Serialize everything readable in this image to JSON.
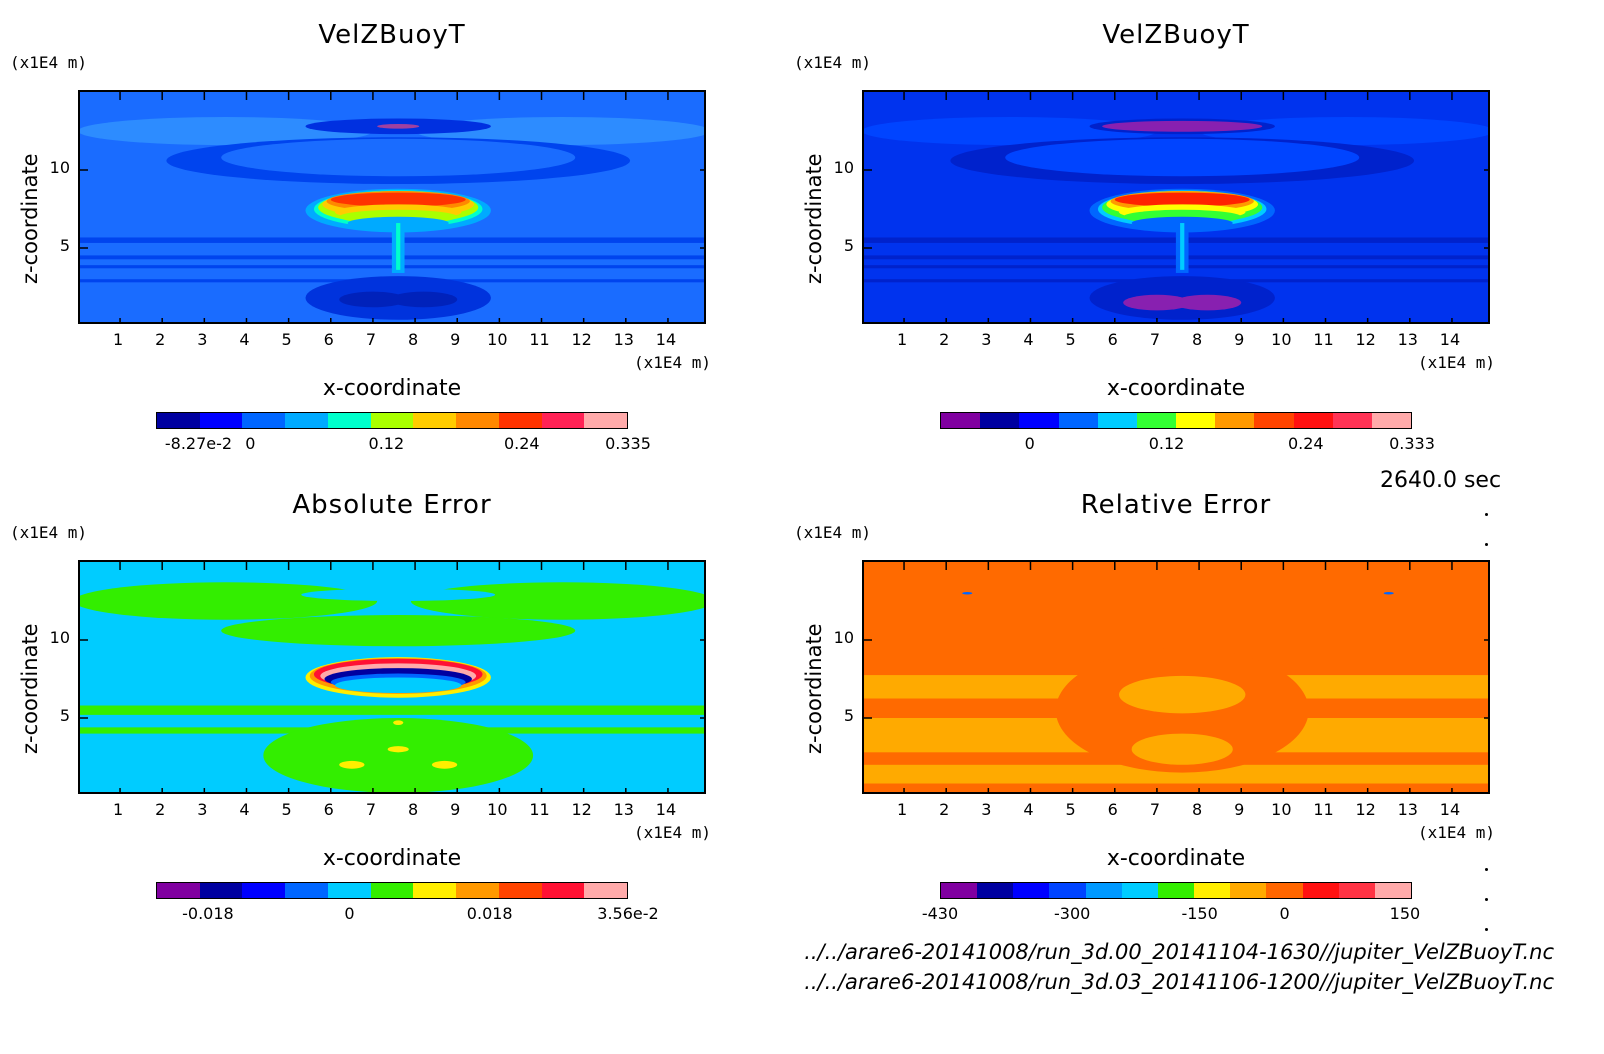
{
  "time_label": "2640.0 sec",
  "file_paths": [
    "../../arare6-20141008/run_3d.00_20141104-1630//jupiter_VelZBuoyT.nc",
    "../../arare6-20141008/run_3d.03_20141106-1200//jupiter_VelZBuoyT.nc"
  ],
  "chart_data": [
    {
      "type": "heatmap",
      "title": "VelZBuoyT",
      "xlabel": "x-coordinate",
      "ylabel": "z-coordinate",
      "x_unit": "(x1E4 m)",
      "y_unit": "(x1E4 m)",
      "xticks": [
        1,
        2,
        3,
        4,
        5,
        6,
        7,
        8,
        9,
        10,
        11,
        12,
        13,
        14
      ],
      "yticks": [
        5,
        10
      ],
      "xlim": [
        0.05,
        14.95
      ],
      "ylim": [
        0,
        15
      ],
      "colorbar": {
        "colors": [
          "#0000a0",
          "#0000ff",
          "#0066ff",
          "#00aaff",
          "#00ffcc",
          "#aaff00",
          "#ffcc00",
          "#ff8800",
          "#ff3300",
          "#ff2255",
          "#ffaaaa"
        ],
        "labels": [
          "-8.27e-2",
          "0",
          "0.12",
          "0.24",
          "0.335"
        ]
      },
      "background": "#1a6cff",
      "layers": [
        {
          "shape": "ellipse",
          "x": 3.5,
          "z": 12.5,
          "rx": 3.5,
          "rz": 0.9,
          "fill": "#2d8cff"
        },
        {
          "shape": "ellipse",
          "x": 11.5,
          "z": 12.5,
          "rx": 3.5,
          "rz": 0.9,
          "fill": "#2d8cff"
        },
        {
          "shape": "ellipse",
          "x": 7.6,
          "z": 12.8,
          "rx": 2.2,
          "rz": 0.5,
          "fill": "#0030e0"
        },
        {
          "shape": "ellipse",
          "x": 7.6,
          "z": 12.8,
          "rx": 0.5,
          "rz": 0.15,
          "fill": "#a040a0"
        },
        {
          "shape": "ellipse",
          "x": 7.6,
          "z": 10.6,
          "rx": 5.5,
          "rz": 1.5,
          "fill": "#0044ee"
        },
        {
          "shape": "ellipse",
          "x": 7.6,
          "z": 10.8,
          "rx": 4.2,
          "rz": 1.2,
          "fill": "#1a6cff"
        },
        {
          "shape": "band",
          "z": 5.5,
          "h": 0.35,
          "fill": "#0044ee"
        },
        {
          "shape": "band",
          "z": 4.4,
          "h": 0.25,
          "fill": "#0044ee"
        },
        {
          "shape": "band",
          "z": 3.8,
          "h": 0.2,
          "fill": "#0044ee"
        },
        {
          "shape": "band",
          "z": 2.9,
          "h": 0.2,
          "fill": "#0044ee"
        },
        {
          "shape": "ellipse",
          "x": 7.6,
          "z": 1.8,
          "rx": 2.2,
          "rz": 1.4,
          "fill": "#0033dd"
        },
        {
          "shape": "ellipse",
          "x": 7.0,
          "z": 1.7,
          "rx": 0.8,
          "rz": 0.5,
          "fill": "#0022bb"
        },
        {
          "shape": "ellipse",
          "x": 8.2,
          "z": 1.7,
          "rx": 0.8,
          "rz": 0.5,
          "fill": "#0022bb"
        },
        {
          "shape": "ellipse",
          "x": 7.6,
          "z": 7.4,
          "rx": 2.2,
          "rz": 1.4,
          "fill": "#00aaff"
        },
        {
          "shape": "ellipse",
          "x": 7.6,
          "z": 7.5,
          "rx": 2.0,
          "rz": 1.2,
          "fill": "#00ffcc"
        },
        {
          "shape": "ellipse",
          "x": 7.6,
          "z": 7.6,
          "rx": 1.9,
          "rz": 1.05,
          "fill": "#aaff00"
        },
        {
          "shape": "ellipse",
          "x": 7.6,
          "z": 7.8,
          "rx": 1.8,
          "rz": 0.85,
          "fill": "#ffcc00"
        },
        {
          "shape": "ellipse",
          "x": 7.6,
          "z": 8.0,
          "rx": 1.7,
          "rz": 0.65,
          "fill": "#ff8800"
        },
        {
          "shape": "ellipse",
          "x": 7.6,
          "z": 8.1,
          "rx": 1.6,
          "rz": 0.45,
          "fill": "#ff3300"
        },
        {
          "shape": "ellipse",
          "x": 7.6,
          "z": 7.3,
          "rx": 1.5,
          "rz": 0.5,
          "fill": "#ffcc00"
        },
        {
          "shape": "ellipse",
          "x": 7.6,
          "z": 7.0,
          "rx": 1.4,
          "rz": 0.45,
          "fill": "#aaff00"
        },
        {
          "shape": "ellipse",
          "x": 7.6,
          "z": 6.6,
          "rx": 1.2,
          "rz": 0.4,
          "fill": "#00aaff"
        },
        {
          "shape": "rect",
          "x": 7.45,
          "z": 3.4,
          "w": 0.3,
          "h": 3.4,
          "fill": "#00aaff"
        },
        {
          "shape": "rect",
          "x": 7.55,
          "z": 3.6,
          "w": 0.1,
          "h": 3.0,
          "fill": "#00ffcc"
        }
      ]
    },
    {
      "type": "heatmap",
      "title": "VelZBuoyT",
      "xlabel": "x-coordinate",
      "ylabel": "z-coordinate",
      "x_unit": "(x1E4 m)",
      "y_unit": "(x1E4 m)",
      "xticks": [
        1,
        2,
        3,
        4,
        5,
        6,
        7,
        8,
        9,
        10,
        11,
        12,
        13,
        14
      ],
      "yticks": [
        5,
        10
      ],
      "xlim": [
        0.05,
        14.95
      ],
      "ylim": [
        0,
        15
      ],
      "colorbar": {
        "colors": [
          "#8000a0",
          "#0000a0",
          "#0000ff",
          "#0066ff",
          "#00ccff",
          "#33ff33",
          "#ffff00",
          "#ff9900",
          "#ff4400",
          "#ff1111",
          "#ff3355",
          "#ffaaaa"
        ],
        "labels": [
          "0",
          "0.12",
          "0.24",
          "0.333"
        ]
      },
      "background": "#0033ee",
      "layers": [
        {
          "shape": "ellipse",
          "x": 3.5,
          "z": 12.5,
          "rx": 3.5,
          "rz": 0.9,
          "fill": "#0044ff"
        },
        {
          "shape": "ellipse",
          "x": 11.5,
          "z": 12.5,
          "rx": 3.5,
          "rz": 0.9,
          "fill": "#0044ff"
        },
        {
          "shape": "ellipse",
          "x": 7.6,
          "z": 12.8,
          "rx": 2.2,
          "rz": 0.5,
          "fill": "#0022cc"
        },
        {
          "shape": "ellipse",
          "x": 7.6,
          "z": 12.8,
          "rx": 1.9,
          "rz": 0.35,
          "fill": "#8820b0"
        },
        {
          "shape": "ellipse",
          "x": 7.6,
          "z": 10.6,
          "rx": 5.5,
          "rz": 1.5,
          "fill": "#0022cc"
        },
        {
          "shape": "ellipse",
          "x": 7.6,
          "z": 10.8,
          "rx": 4.2,
          "rz": 1.2,
          "fill": "#0044ff"
        },
        {
          "shape": "band",
          "z": 5.5,
          "h": 0.35,
          "fill": "#0022cc"
        },
        {
          "shape": "band",
          "z": 4.4,
          "h": 0.25,
          "fill": "#0022cc"
        },
        {
          "shape": "band",
          "z": 3.8,
          "h": 0.2,
          "fill": "#0022cc"
        },
        {
          "shape": "band",
          "z": 2.9,
          "h": 0.2,
          "fill": "#0022cc"
        },
        {
          "shape": "ellipse",
          "x": 7.6,
          "z": 1.8,
          "rx": 2.2,
          "rz": 1.4,
          "fill": "#0022cc"
        },
        {
          "shape": "ellipse",
          "x": 7.0,
          "z": 1.5,
          "rx": 0.8,
          "rz": 0.5,
          "fill": "#8820b0"
        },
        {
          "shape": "ellipse",
          "x": 8.2,
          "z": 1.5,
          "rx": 0.8,
          "rz": 0.5,
          "fill": "#8820b0"
        },
        {
          "shape": "ellipse",
          "x": 7.6,
          "z": 7.4,
          "rx": 2.2,
          "rz": 1.4,
          "fill": "#0066ff"
        },
        {
          "shape": "ellipse",
          "x": 7.6,
          "z": 7.5,
          "rx": 2.0,
          "rz": 1.2,
          "fill": "#00ccff"
        },
        {
          "shape": "ellipse",
          "x": 7.6,
          "z": 7.6,
          "rx": 1.9,
          "rz": 1.05,
          "fill": "#33ff33"
        },
        {
          "shape": "ellipse",
          "x": 7.6,
          "z": 7.8,
          "rx": 1.8,
          "rz": 0.85,
          "fill": "#ffff00"
        },
        {
          "shape": "ellipse",
          "x": 7.6,
          "z": 8.0,
          "rx": 1.7,
          "rz": 0.65,
          "fill": "#ff9900"
        },
        {
          "shape": "ellipse",
          "x": 7.6,
          "z": 8.1,
          "rx": 1.6,
          "rz": 0.45,
          "fill": "#ff2200"
        },
        {
          "shape": "ellipse",
          "x": 7.6,
          "z": 7.3,
          "rx": 1.5,
          "rz": 0.5,
          "fill": "#ffff00"
        },
        {
          "shape": "ellipse",
          "x": 7.6,
          "z": 7.0,
          "rx": 1.4,
          "rz": 0.45,
          "fill": "#33ff33"
        },
        {
          "shape": "ellipse",
          "x": 7.6,
          "z": 6.6,
          "rx": 1.2,
          "rz": 0.4,
          "fill": "#0066ff"
        },
        {
          "shape": "rect",
          "x": 7.45,
          "z": 3.4,
          "w": 0.3,
          "h": 3.4,
          "fill": "#0066ff"
        },
        {
          "shape": "rect",
          "x": 7.55,
          "z": 3.6,
          "w": 0.1,
          "h": 3.0,
          "fill": "#00ccff"
        }
      ]
    },
    {
      "type": "heatmap",
      "title": "Absolute Error",
      "xlabel": "x-coordinate",
      "ylabel": "z-coordinate",
      "x_unit": "(x1E4 m)",
      "y_unit": "(x1E4 m)",
      "xticks": [
        1,
        2,
        3,
        4,
        5,
        6,
        7,
        8,
        9,
        10,
        11,
        12,
        13,
        14
      ],
      "yticks": [
        5,
        10
      ],
      "xlim": [
        0.05,
        14.95
      ],
      "ylim": [
        0,
        15
      ],
      "colorbar": {
        "colors": [
          "#8000a0",
          "#0000a0",
          "#0000ff",
          "#0066ff",
          "#00ccff",
          "#33ee00",
          "#ffee00",
          "#ff9900",
          "#ff4400",
          "#ff1133",
          "#ffaaaa"
        ],
        "labels": [
          "-0.018",
          "0",
          "0.018",
          "3.56e-2"
        ]
      },
      "background": "#00ccff",
      "layers": [
        {
          "shape": "ellipse",
          "x": 3.5,
          "z": 12.5,
          "rx": 3.6,
          "rz": 1.2,
          "fill": "#33ee00"
        },
        {
          "shape": "ellipse",
          "x": 11.5,
          "z": 12.5,
          "rx": 3.6,
          "rz": 1.2,
          "fill": "#33ee00"
        },
        {
          "shape": "ellipse",
          "x": 7.6,
          "z": 12.9,
          "rx": 2.3,
          "rz": 0.4,
          "fill": "#00ccff"
        },
        {
          "shape": "ellipse",
          "x": 7.6,
          "z": 10.6,
          "rx": 4.2,
          "rz": 1.0,
          "fill": "#33ee00"
        },
        {
          "shape": "band",
          "z": 5.5,
          "h": 0.6,
          "fill": "#33ee00"
        },
        {
          "shape": "band",
          "z": 4.2,
          "h": 0.4,
          "fill": "#33ee00"
        },
        {
          "shape": "ellipse",
          "x": 7.6,
          "z": 2.6,
          "rx": 3.2,
          "rz": 2.4,
          "fill": "#33ee00"
        },
        {
          "shape": "ellipse",
          "x": 7.6,
          "z": 7.6,
          "rx": 2.2,
          "rz": 1.3,
          "fill": "#ffee00"
        },
        {
          "shape": "ellipse",
          "x": 7.6,
          "z": 7.7,
          "rx": 2.1,
          "rz": 1.15,
          "fill": "#ff9900"
        },
        {
          "shape": "ellipse",
          "x": 7.6,
          "z": 7.8,
          "rx": 2.0,
          "rz": 1.0,
          "fill": "#ff1133"
        },
        {
          "shape": "ellipse",
          "x": 7.6,
          "z": 7.7,
          "rx": 1.85,
          "rz": 0.8,
          "fill": "#ffaaaa"
        },
        {
          "shape": "ellipse",
          "x": 7.6,
          "z": 7.5,
          "rx": 1.75,
          "rz": 0.7,
          "fill": "#0000a0"
        },
        {
          "shape": "ellipse",
          "x": 7.6,
          "z": 7.3,
          "rx": 1.6,
          "rz": 0.55,
          "fill": "#0066ff"
        },
        {
          "shape": "ellipse",
          "x": 7.6,
          "z": 7.1,
          "rx": 1.5,
          "rz": 0.5,
          "fill": "#00ccff"
        },
        {
          "shape": "ellipse",
          "x": 6.5,
          "z": 2.0,
          "rx": 0.3,
          "rz": 0.25,
          "fill": "#ffee00"
        },
        {
          "shape": "ellipse",
          "x": 8.7,
          "z": 2.0,
          "rx": 0.3,
          "rz": 0.25,
          "fill": "#ffee00"
        },
        {
          "shape": "ellipse",
          "x": 7.6,
          "z": 3.0,
          "rx": 0.25,
          "rz": 0.2,
          "fill": "#ffee00"
        },
        {
          "shape": "ellipse",
          "x": 7.6,
          "z": 4.7,
          "rx": 0.12,
          "rz": 0.15,
          "fill": "#ffee00"
        }
      ]
    },
    {
      "type": "heatmap",
      "title": "Relative Error",
      "xlabel": "x-coordinate",
      "ylabel": "z-coordinate",
      "x_unit": "(x1E4 m)",
      "y_unit": "(x1E4 m)",
      "xticks": [
        1,
        2,
        3,
        4,
        5,
        6,
        7,
        8,
        9,
        10,
        11,
        12,
        13,
        14
      ],
      "yticks": [
        5,
        10
      ],
      "xlim": [
        0.05,
        14.95
      ],
      "ylim": [
        0,
        15
      ],
      "colorbar": {
        "colors": [
          "#8000a0",
          "#0000a0",
          "#0000ff",
          "#0044ff",
          "#0099ff",
          "#00ccff",
          "#33ee00",
          "#ffee00",
          "#ffaa00",
          "#ff6600",
          "#ff1111",
          "#ff3344",
          "#ffaaaa"
        ],
        "labels": [
          "-430",
          "-300",
          "-150",
          "0",
          "150"
        ]
      },
      "background": "#ff6a00",
      "layers": [
        {
          "shape": "band",
          "z": 7.0,
          "h": 1.5,
          "fill": "#ffaa00"
        },
        {
          "shape": "band",
          "z": 3.9,
          "h": 2.2,
          "fill": "#ffaa00"
        },
        {
          "shape": "band",
          "z": 1.4,
          "h": 1.2,
          "fill": "#ffaa00"
        },
        {
          "shape": "ellipse",
          "x": 7.6,
          "z": 5.5,
          "rx": 3.0,
          "rz": 4.0,
          "fill": "#ff6a00"
        },
        {
          "shape": "ellipse",
          "x": 7.6,
          "z": 6.5,
          "rx": 1.5,
          "rz": 1.2,
          "fill": "#ffaa00"
        },
        {
          "shape": "ellipse",
          "x": 7.6,
          "z": 3.0,
          "rx": 1.2,
          "rz": 1.0,
          "fill": "#ffaa00"
        },
        {
          "shape": "ellipse",
          "x": 2.5,
          "z": 13.0,
          "rx": 0.12,
          "rz": 0.08,
          "fill": "#0066ff"
        },
        {
          "shape": "ellipse",
          "x": 12.5,
          "z": 13.0,
          "rx": 0.12,
          "rz": 0.08,
          "fill": "#0066ff"
        }
      ]
    }
  ]
}
